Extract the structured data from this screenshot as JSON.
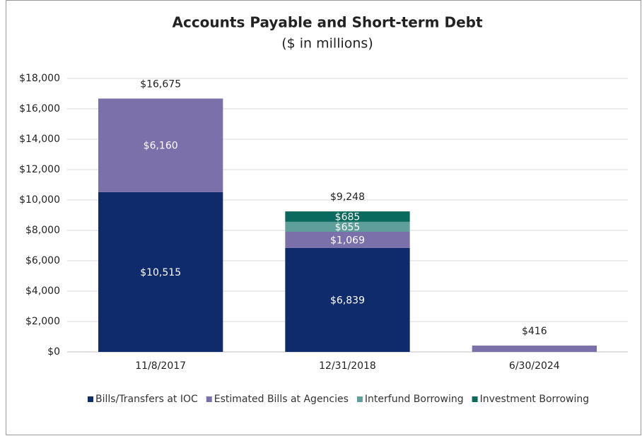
{
  "chart_data": {
    "type": "bar",
    "stacked": true,
    "title": "Accounts Payable and Short-term Debt",
    "subtitle": "($ in millions)",
    "categories": [
      "11/8/2017",
      "12/31/2018",
      "6/30/2024"
    ],
    "series": [
      {
        "name": "Bills/Transfers at IOC",
        "color": "#0f2b6b",
        "values": [
          10515,
          6839,
          null
        ],
        "value_labels": [
          "$10,515",
          "$6,839",
          null
        ]
      },
      {
        "name": "Estimated Bills at Agencies",
        "color": "#7b70aa",
        "values": [
          6160,
          1069,
          416
        ],
        "value_labels": [
          "$6,160",
          "$1,069",
          null
        ]
      },
      {
        "name": "Interfund Borrowing",
        "color": "#5e9e9b",
        "values": [
          null,
          655,
          null
        ],
        "value_labels": [
          null,
          "$655",
          null
        ]
      },
      {
        "name": "Investment Borrowing",
        "color": "#0a6a5d",
        "values": [
          null,
          685,
          null
        ],
        "value_labels": [
          null,
          "$685",
          null
        ]
      }
    ],
    "totals": [
      16675,
      9248,
      416
    ],
    "total_labels": [
      "$16,675",
      "$9,248",
      "$416"
    ],
    "ylim": [
      0,
      18000
    ],
    "yticks": [
      {
        "value": 0,
        "label": "$0"
      },
      {
        "value": 2000,
        "label": "$2,000"
      },
      {
        "value": 4000,
        "label": "$4,000"
      },
      {
        "value": 6000,
        "label": "$6,000"
      },
      {
        "value": 8000,
        "label": "$8,000"
      },
      {
        "value": 10000,
        "label": "$10,000"
      },
      {
        "value": 12000,
        "label": "$12,000"
      },
      {
        "value": 14000,
        "label": "$14,000"
      },
      {
        "value": 16000,
        "label": "$16,000"
      },
      {
        "value": 18000,
        "label": "$18,000"
      }
    ],
    "grid": true,
    "legend": "bottom"
  }
}
